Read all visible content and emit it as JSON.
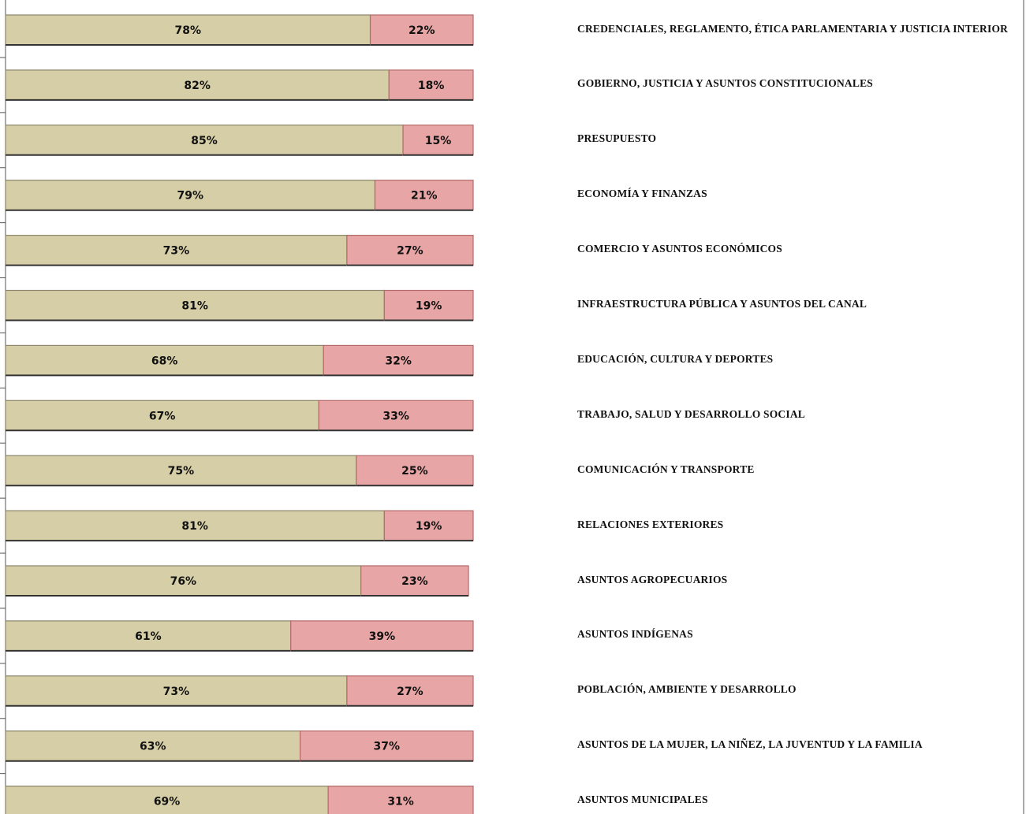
{
  "chart_data": {
    "type": "stacked-bar-horizontal",
    "categories": [
      "CREDENCIALES, REGLAMENTO, ÉTICA PARLAMENTARIA Y JUSTICIA INTERIOR",
      "GOBIERNO, JUSTICIA Y ASUNTOS CONSTITUCIONALES",
      "PRESUPUESTO",
      "ECONOMÍA Y FINANZAS",
      "COMERCIO Y ASUNTOS ECONÓMICOS",
      "INFRAESTRUCTURA PÚBLICA Y ASUNTOS DEL CANAL",
      "EDUCACIÓN, CULTURA Y DEPORTES",
      "TRABAJO, SALUD Y DESARROLLO SOCIAL",
      "COMUNICACIÓN Y TRANSPORTE",
      "RELACIONES EXTERIORES",
      "ASUNTOS AGROPECUARIOS",
      "ASUNTOS INDÍGENAS",
      "POBLACIÓN, AMBIENTE Y DESARROLLO",
      "ASUNTOS DE LA MUJER, LA NIÑEZ, LA JUVENTUD Y LA FAMILIA",
      "ASUNTOS MUNICIPALES"
    ],
    "series": [
      {
        "color": "#d6cea6",
        "values": [
          78,
          82,
          85,
          79,
          73,
          81,
          68,
          67,
          75,
          81,
          76,
          61,
          73,
          63,
          69
        ],
        "value_labels": [
          "78%",
          "82%",
          "85%",
          "79%",
          "73%",
          "81%",
          "68%",
          "67%",
          "75%",
          "81%",
          "76%",
          "61%",
          "73%",
          "63%",
          "69%"
        ]
      },
      {
        "color": "#e8a5a5",
        "values": [
          22,
          18,
          15,
          21,
          27,
          19,
          32,
          33,
          25,
          19,
          23,
          39,
          27,
          37,
          31
        ],
        "value_labels": [
          "22%",
          "18%",
          "15%",
          "21%",
          "27%",
          "19%",
          "32%",
          "33%",
          "25%",
          "19%",
          "23%",
          "39%",
          "27%",
          "37%",
          "31%"
        ]
      }
    ],
    "xlim": [
      0,
      100
    ]
  }
}
